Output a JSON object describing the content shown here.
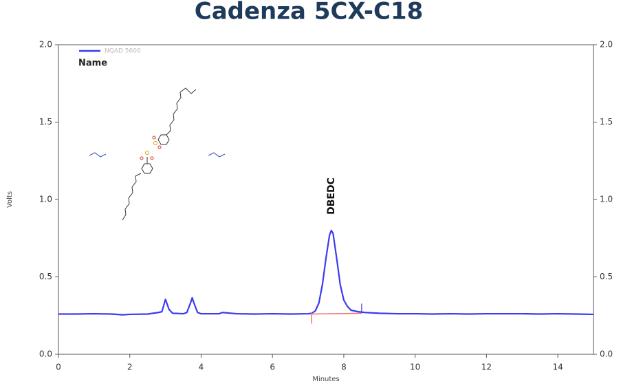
{
  "chart_data": {
    "type": "line",
    "title": "Cadenza 5CX-C18",
    "x_label": "Minutes",
    "y_label": "Volts",
    "legend_header": "Name",
    "x": [
      0,
      0.5,
      1,
      1.5,
      1.8,
      2,
      2.5,
      2.8,
      2.9,
      3.0,
      3.1,
      3.2,
      3.5,
      3.6,
      3.7,
      3.75,
      3.8,
      3.9,
      4.0,
      4.5,
      4.6,
      5,
      5.5,
      6,
      6.5,
      7,
      7.1,
      7.2,
      7.3,
      7.4,
      7.5,
      7.6,
      7.65,
      7.7,
      7.8,
      7.9,
      8.0,
      8.1,
      8.2,
      8.4,
      8.6,
      9,
      9.5,
      10,
      10.5,
      11,
      11.5,
      12,
      12.5,
      13,
      13.5,
      14,
      14.5,
      15
    ],
    "series": [
      {
        "name": "NQAD 5600",
        "color": "#3a3af0",
        "values": [
          0.26,
          0.26,
          0.262,
          0.26,
          0.255,
          0.258,
          0.26,
          0.27,
          0.275,
          0.355,
          0.29,
          0.265,
          0.262,
          0.27,
          0.33,
          0.365,
          0.33,
          0.27,
          0.262,
          0.262,
          0.27,
          0.262,
          0.26,
          0.262,
          0.26,
          0.262,
          0.265,
          0.28,
          0.33,
          0.45,
          0.62,
          0.77,
          0.8,
          0.78,
          0.62,
          0.45,
          0.35,
          0.31,
          0.285,
          0.275,
          0.27,
          0.265,
          0.262,
          0.262,
          0.26,
          0.262,
          0.26,
          0.262,
          0.262,
          0.262,
          0.26,
          0.262,
          0.26,
          0.258
        ]
      }
    ],
    "peak_label": "DBEDC",
    "baseline": {
      "x": [
        7.1,
        8.5
      ],
      "values": [
        0.26,
        0.265
      ],
      "color": "#f07070"
    },
    "xlim": [
      0,
      15
    ],
    "xticks": [
      0,
      2,
      4,
      6,
      8,
      10,
      12,
      14
    ],
    "ylim": [
      0,
      2
    ],
    "yticks": [
      {
        "value": 0,
        "label": "0.0"
      },
      {
        "value": 0.5,
        "label": "0.5"
      },
      {
        "value": 1,
        "label": "1.0"
      },
      {
        "value": 1.5,
        "label": "1.5"
      },
      {
        "value": 2,
        "label": "2.0"
      }
    ],
    "y2lim": [
      0,
      2
    ],
    "y2ticks": [
      {
        "value": 0,
        "label": "0.0"
      },
      {
        "value": 0.5,
        "label": "0.5"
      },
      {
        "value": 1,
        "label": "1.0"
      },
      {
        "value": 1.5,
        "label": "1.5"
      },
      {
        "value": 2,
        "label": "2.0"
      }
    ]
  }
}
